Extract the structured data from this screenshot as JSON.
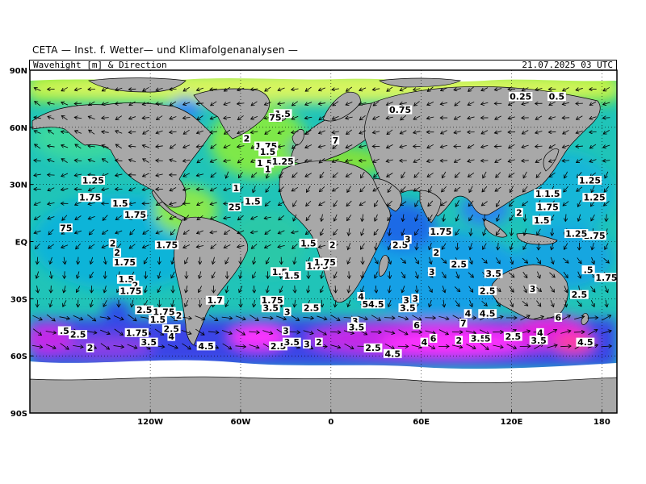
{
  "title": "CETA — Inst. f. Wetter— und Klimafolgenanalysen —",
  "header": {
    "left": "Wavehight [m] & Direction",
    "right": "21.07.2025 03 UTC"
  },
  "axes": {
    "lat_ticks": [
      "90N",
      "60N",
      "30N",
      "EQ",
      "30S",
      "60S",
      "90S"
    ],
    "lon_ticks": [
      "120W",
      "60W",
      "0",
      "60E",
      "120E",
      "180"
    ]
  },
  "colors": {
    "land": "#a8a8a8",
    "ocean_low": "#22c8b4",
    "ocean_mid": "#12a6e0",
    "ocean_high": "#3a44e6",
    "ocean_very_high": "#e020e0",
    "light_waves": "#90ee22",
    "calm": "#d6f560",
    "ice": "#ffffff"
  },
  "contour_labels": [
    {
      "text": "1.25",
      "lon": -158,
      "lat": 32
    },
    {
      "text": "1.75",
      "lon": -160,
      "lat": 23
    },
    {
      "text": "1.5",
      "lon": -140,
      "lat": 20
    },
    {
      "text": "1.75",
      "lon": -130,
      "lat": 14
    },
    {
      "text": "75",
      "lon": -176,
      "lat": 7
    },
    {
      "text": "2",
      "lon": -145,
      "lat": -1
    },
    {
      "text": "2",
      "lon": -142,
      "lat": -6
    },
    {
      "text": "1.75",
      "lon": -137,
      "lat": -11
    },
    {
      "text": "1.75",
      "lon": -109,
      "lat": -2
    },
    {
      "text": "1.5",
      "lon": -136,
      "lat": -20
    },
    {
      "text": "2",
      "lon": -130,
      "lat": -23
    },
    {
      "text": "1.75",
      "lon": -133,
      "lat": -26
    },
    {
      "text": "2.5",
      "lon": -124,
      "lat": -36
    },
    {
      "text": "1.75",
      "lon": -111,
      "lat": -37
    },
    {
      "text": "1.5",
      "lon": -115,
      "lat": -41
    },
    {
      "text": "2",
      "lon": -101,
      "lat": -39
    },
    {
      "text": "2.5",
      "lon": -106,
      "lat": -46
    },
    {
      "text": "1.75",
      "lon": -129,
      "lat": -48
    },
    {
      "text": ".5",
      "lon": -177,
      "lat": -47
    },
    {
      "text": "2.5",
      "lon": -168,
      "lat": -49
    },
    {
      "text": "2",
      "lon": -160,
      "lat": -56
    },
    {
      "text": "4",
      "lon": -106,
      "lat": -50
    },
    {
      "text": "3.5",
      "lon": -121,
      "lat": -53
    },
    {
      "text": "4.5",
      "lon": -83,
      "lat": -55
    },
    {
      "text": "1.7",
      "lon": -77,
      "lat": -31
    },
    {
      "text": "1.75",
      "lon": -39,
      "lat": -31
    },
    {
      "text": "3.5",
      "lon": -40,
      "lat": -35
    },
    {
      "text": "2.5",
      "lon": -13,
      "lat": -35
    },
    {
      "text": "3",
      "lon": -29,
      "lat": -37
    },
    {
      "text": "3",
      "lon": -30,
      "lat": -47
    },
    {
      "text": "2.5",
      "lon": -35,
      "lat": -55
    },
    {
      "text": "3.5",
      "lon": -26,
      "lat": -53
    },
    {
      "text": "3",
      "lon": -16,
      "lat": -54
    },
    {
      "text": "2",
      "lon": -8,
      "lat": -53
    },
    {
      "text": "1.5",
      "lon": -34,
      "lat": -16
    },
    {
      "text": "1.5",
      "lon": -26,
      "lat": -18
    },
    {
      "text": "1.75",
      "lon": -9,
      "lat": -13
    },
    {
      "text": "1.75",
      "lon": -4,
      "lat": -11
    },
    {
      "text": "1.5",
      "lon": -15,
      "lat": -1
    },
    {
      "text": "2",
      "lon": 1,
      "lat": -2
    },
    {
      "text": "4",
      "lon": 20,
      "lat": -29
    },
    {
      "text": "54.5",
      "lon": 28,
      "lat": -33
    },
    {
      "text": "3",
      "lon": 16,
      "lat": -42
    },
    {
      "text": "3.5",
      "lon": 17,
      "lat": -45
    },
    {
      "text": "2.5",
      "lon": 28,
      "lat": -56
    },
    {
      "text": "4.5",
      "lon": 41,
      "lat": -59
    },
    {
      "text": "3",
      "lon": 50,
      "lat": -31
    },
    {
      "text": "3",
      "lon": 56,
      "lat": -30
    },
    {
      "text": "3.5",
      "lon": 51,
      "lat": -35
    },
    {
      "text": "6",
      "lon": 57,
      "lat": -44
    },
    {
      "text": "4",
      "lon": 62,
      "lat": -53
    },
    {
      "text": "6",
      "lon": 68,
      "lat": -51
    },
    {
      "text": "7",
      "lon": 88,
      "lat": -43
    },
    {
      "text": "4",
      "lon": 91,
      "lat": -38
    },
    {
      "text": "4.5",
      "lon": 104,
      "lat": -38
    },
    {
      "text": "2",
      "lon": 85,
      "lat": -52
    },
    {
      "text": "3.5",
      "lon": 98,
      "lat": -51
    },
    {
      "text": "5",
      "lon": 104,
      "lat": -51
    },
    {
      "text": "2.5",
      "lon": 121,
      "lat": -50
    },
    {
      "text": "4",
      "lon": 139,
      "lat": -48
    },
    {
      "text": "3.5",
      "lon": 138,
      "lat": -52
    },
    {
      "text": "6",
      "lon": 151,
      "lat": -40
    },
    {
      "text": "4.5",
      "lon": 169,
      "lat": -53
    },
    {
      "text": "2.5",
      "lon": 165,
      "lat": -28
    },
    {
      "text": "2.5",
      "lon": 104,
      "lat": -26
    },
    {
      "text": "3.5",
      "lon": 108,
      "lat": -17
    },
    {
      "text": "3",
      "lon": 67,
      "lat": -16
    },
    {
      "text": "2.5",
      "lon": 85,
      "lat": -12
    },
    {
      "text": "2",
      "lon": 70,
      "lat": -6
    },
    {
      "text": "2.5",
      "lon": 46,
      "lat": -2
    },
    {
      "text": "3",
      "lon": 51,
      "lat": 1
    },
    {
      "text": "1.75",
      "lon": 73,
      "lat": 5
    },
    {
      "text": "3",
      "lon": 134,
      "lat": -25
    },
    {
      "text": ".5",
      "lon": 171,
      "lat": -15
    },
    {
      "text": "1.75",
      "lon": 183,
      "lat": -19
    },
    {
      "text": "1.75",
      "lon": 175,
      "lat": 3
    },
    {
      "text": "1.25",
      "lon": 163,
      "lat": 4
    },
    {
      "text": "1.5",
      "lon": 140,
      "lat": 11
    },
    {
      "text": "1.75",
      "lon": 144,
      "lat": 18
    },
    {
      "text": "2",
      "lon": 125,
      "lat": 15
    },
    {
      "text": "1.5",
      "lon": 141,
      "lat": 25
    },
    {
      "text": "1.5",
      "lon": 147,
      "lat": 25
    },
    {
      "text": "1.25",
      "lon": 172,
      "lat": 32
    },
    {
      "text": "1.25",
      "lon": 175,
      "lat": 23
    },
    {
      "text": "0.25",
      "lon": 126,
      "lat": 76
    },
    {
      "text": "0.5",
      "lon": 150,
      "lat": 76
    },
    {
      "text": "0.75",
      "lon": 46,
      "lat": 69
    },
    {
      "text": "1.5",
      "lon": -32,
      "lat": 67
    },
    {
      "text": "75",
      "lon": -37,
      "lat": 65
    },
    {
      "text": "2",
      "lon": -56,
      "lat": 54
    },
    {
      "text": "1.75",
      "lon": -43,
      "lat": 50
    },
    {
      "text": "1.5",
      "lon": -42,
      "lat": 47
    },
    {
      "text": "7",
      "lon": 3,
      "lat": 53
    },
    {
      "text": "1.5",
      "lon": -44,
      "lat": 41
    },
    {
      "text": "1",
      "lon": -42,
      "lat": 38
    },
    {
      "text": "1.25",
      "lon": -32,
      "lat": 42
    },
    {
      "text": "1",
      "lon": -63,
      "lat": 28
    },
    {
      "text": "1.5",
      "lon": -52,
      "lat": 21
    },
    {
      "text": "25",
      "lon": -64,
      "lat": 18
    }
  ]
}
